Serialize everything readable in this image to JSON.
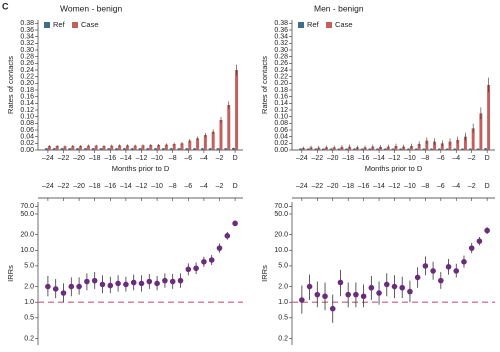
{
  "panel_label": "C",
  "chart_data": [
    {
      "type": "bar",
      "title": "Women - benign",
      "xlabel": "Months prior to D",
      "ylabel": "Rates of contacts",
      "legend": "upper left",
      "categories": [
        "–24",
        null,
        "–22",
        null,
        "–20",
        null,
        "–18",
        null,
        "–16",
        null,
        "–14",
        null,
        "–12",
        null,
        "–10",
        null,
        "–8",
        null,
        "–6",
        null,
        "–4",
        null,
        "–2",
        null,
        "D"
      ],
      "series": [
        {
          "name": "Ref",
          "color": "#3d6e8e",
          "values": [
            0.005,
            0.005,
            0.005,
            0.005,
            0.005,
            0.005,
            0.005,
            0.005,
            0.005,
            0.005,
            0.005,
            0.005,
            0.005,
            0.005,
            0.005,
            0.005,
            0.005,
            0.005,
            0.005,
            0.005,
            0.005,
            0.005,
            0.005,
            0.005,
            0.006
          ],
          "errors": [
            0.001,
            0.001,
            0.001,
            0.001,
            0.001,
            0.001,
            0.001,
            0.001,
            0.001,
            0.001,
            0.001,
            0.001,
            0.001,
            0.001,
            0.001,
            0.001,
            0.001,
            0.001,
            0.001,
            0.001,
            0.001,
            0.001,
            0.001,
            0.001,
            0.001
          ]
        },
        {
          "name": "Case",
          "color": "#c4605c",
          "values": [
            0.012,
            0.012,
            0.011,
            0.012,
            0.012,
            0.013,
            0.013,
            0.012,
            0.013,
            0.014,
            0.014,
            0.013,
            0.014,
            0.015,
            0.015,
            0.016,
            0.018,
            0.02,
            0.028,
            0.035,
            0.045,
            0.055,
            0.09,
            0.135,
            0.24
          ],
          "errors": [
            0.003,
            0.003,
            0.003,
            0.003,
            0.003,
            0.003,
            0.003,
            0.003,
            0.003,
            0.003,
            0.003,
            0.003,
            0.003,
            0.003,
            0.003,
            0.004,
            0.004,
            0.004,
            0.005,
            0.005,
            0.006,
            0.007,
            0.009,
            0.011,
            0.016
          ]
        }
      ],
      "ylim": [
        0,
        0.39
      ],
      "yticks": [
        {
          "value": 0,
          "label": "0.00"
        },
        {
          "value": 0.02,
          "label": "0.02"
        },
        {
          "value": 0.04,
          "label": "0.04"
        },
        {
          "value": 0.06,
          "label": "0.06"
        },
        {
          "value": 0.08,
          "label": "0.08"
        },
        {
          "value": 0.1,
          "label": "0.10"
        },
        {
          "value": 0.12,
          "label": "0.12"
        },
        {
          "value": 0.14,
          "label": "0.14"
        },
        {
          "value": 0.16,
          "label": "0.16"
        },
        {
          "value": 0.18,
          "label": "0.18"
        },
        {
          "value": 0.2,
          "label": "0.20"
        },
        {
          "value": 0.22,
          "label": "0.22"
        },
        {
          "value": 0.24,
          "label": "0.24"
        },
        {
          "value": 0.26,
          "label": "0.26"
        },
        {
          "value": 0.28,
          "label": "0.28"
        },
        {
          "value": 0.3,
          "label": "0.30"
        },
        {
          "value": 0.32,
          "label": "0.32"
        },
        {
          "value": 0.34,
          "label": "0.34"
        },
        {
          "value": 0.36,
          "label": "0.36"
        },
        {
          "value": 0.38,
          "label": "0.38"
        }
      ]
    },
    {
      "type": "bar",
      "title": "Men - benign",
      "xlabel": "Months prior to D",
      "ylabel": "Rates of contacts",
      "legend": "upper left",
      "categories": [
        "–24",
        null,
        "–22",
        null,
        "–20",
        null,
        "–18",
        null,
        "–16",
        null,
        "–14",
        null,
        "–12",
        null,
        "–10",
        null,
        "–8",
        null,
        "–6",
        null,
        "–4",
        null,
        "–2",
        null,
        "D"
      ],
      "series": [
        {
          "name": "Ref",
          "color": "#3d6e8e",
          "values": [
            0.004,
            0.004,
            0.004,
            0.004,
            0.004,
            0.004,
            0.004,
            0.004,
            0.004,
            0.004,
            0.004,
            0.004,
            0.004,
            0.004,
            0.004,
            0.004,
            0.004,
            0.004,
            0.004,
            0.004,
            0.004,
            0.004,
            0.004,
            0.004,
            0.005
          ],
          "errors": [
            0.001,
            0.001,
            0.001,
            0.001,
            0.001,
            0.001,
            0.001,
            0.001,
            0.001,
            0.001,
            0.001,
            0.001,
            0.001,
            0.001,
            0.001,
            0.001,
            0.001,
            0.001,
            0.001,
            0.001,
            0.001,
            0.001,
            0.001,
            0.001,
            0.001
          ]
        },
        {
          "name": "Case",
          "color": "#c4605c",
          "values": [
            0.006,
            0.008,
            0.007,
            0.008,
            0.008,
            0.009,
            0.01,
            0.008,
            0.008,
            0.01,
            0.009,
            0.01,
            0.012,
            0.01,
            0.012,
            0.018,
            0.028,
            0.025,
            0.02,
            0.025,
            0.03,
            0.04,
            0.065,
            0.11,
            0.195
          ],
          "errors": [
            0.004,
            0.005,
            0.005,
            0.005,
            0.005,
            0.006,
            0.006,
            0.005,
            0.005,
            0.006,
            0.006,
            0.006,
            0.007,
            0.006,
            0.007,
            0.008,
            0.01,
            0.01,
            0.009,
            0.01,
            0.01,
            0.012,
            0.014,
            0.018,
            0.022
          ]
        }
      ],
      "ylim": [
        0,
        0.39
      ],
      "yticks": [
        {
          "value": 0,
          "label": "0.00"
        },
        {
          "value": 0.02,
          "label": "0.02"
        },
        {
          "value": 0.04,
          "label": "0.04"
        },
        {
          "value": 0.06,
          "label": "0.06"
        },
        {
          "value": 0.08,
          "label": "0.08"
        },
        {
          "value": 0.1,
          "label": "0.10"
        },
        {
          "value": 0.12,
          "label": "0.12"
        },
        {
          "value": 0.14,
          "label": "0.14"
        },
        {
          "value": 0.16,
          "label": "0.16"
        },
        {
          "value": 0.18,
          "label": "0.18"
        },
        {
          "value": 0.2,
          "label": "0.20"
        },
        {
          "value": 0.22,
          "label": "0.22"
        },
        {
          "value": 0.24,
          "label": "0.24"
        },
        {
          "value": 0.26,
          "label": "0.26"
        },
        {
          "value": 0.28,
          "label": "0.28"
        },
        {
          "value": 0.3,
          "label": "0.30"
        },
        {
          "value": 0.32,
          "label": "0.32"
        },
        {
          "value": 0.34,
          "label": "0.34"
        },
        {
          "value": 0.36,
          "label": "0.36"
        },
        {
          "value": 0.38,
          "label": "0.38"
        }
      ]
    },
    {
      "type": "dotplot",
      "ylabel": "IRRs",
      "log_scale": true,
      "color": "#6b2d7b",
      "reference_line": 1,
      "reference_color": "#c9587a",
      "categories": [
        "–24",
        null,
        "–22",
        null,
        "–20",
        null,
        "–18",
        null,
        "–16",
        null,
        "–14",
        null,
        "–12",
        null,
        "–10",
        null,
        "–8",
        null,
        "–6",
        null,
        "–4",
        null,
        "–2",
        null,
        "D"
      ],
      "values": [
        2.0,
        1.8,
        1.5,
        2.0,
        2.0,
        2.5,
        2.6,
        2.2,
        2.1,
        2.3,
        2.2,
        2.4,
        2.3,
        2.5,
        2.3,
        2.6,
        2.5,
        2.6,
        4.3,
        4.5,
        6.0,
        6.5,
        11,
        19,
        33
      ],
      "lower": [
        1.3,
        1.2,
        1.0,
        1.3,
        1.4,
        1.7,
        1.8,
        1.5,
        1.5,
        1.6,
        1.6,
        1.7,
        1.6,
        1.8,
        1.7,
        1.9,
        1.8,
        1.9,
        3.3,
        3.5,
        4.8,
        5.2,
        9.0,
        16,
        29
      ],
      "upper": [
        3.2,
        2.8,
        2.3,
        3.0,
        3.0,
        3.6,
        3.8,
        3.3,
        3.1,
        3.3,
        3.1,
        3.4,
        3.3,
        3.5,
        3.2,
        3.6,
        3.5,
        3.6,
        5.6,
        5.8,
        7.5,
        8.1,
        13.5,
        22.5,
        37.5
      ],
      "ylim": [
        0.15,
        85
      ],
      "yticks": [
        0.2,
        0.5,
        {
          "value": 1,
          "label": "1.0"
        },
        {
          "value": 2,
          "label": "2.0"
        },
        {
          "value": 5,
          "label": "5.0"
        },
        {
          "value": 10,
          "label": "10.0"
        },
        {
          "value": 20,
          "label": "20.0"
        },
        {
          "value": 50,
          "label": "50.0"
        },
        {
          "value": 70,
          "label": "70.0"
        }
      ]
    },
    {
      "type": "dotplot",
      "ylabel": "IRRs",
      "log_scale": true,
      "color": "#6b2d7b",
      "reference_line": 1,
      "reference_color": "#c9587a",
      "categories": [
        "–24",
        null,
        "–22",
        null,
        "–20",
        null,
        "–18",
        null,
        "–16",
        null,
        "–14",
        null,
        "–12",
        null,
        "–10",
        null,
        "–8",
        null,
        "–6",
        null,
        "–4",
        null,
        "–2",
        null,
        "D"
      ],
      "values": [
        1.1,
        2.0,
        1.4,
        1.3,
        0.75,
        2.4,
        1.4,
        1.4,
        1.3,
        1.9,
        1.5,
        2.2,
        2.0,
        1.9,
        1.6,
        3.0,
        5.0,
        4.0,
        2.6,
        4.8,
        4.0,
        6.0,
        11,
        15,
        24
      ],
      "lower": [
        0.6,
        1.1,
        0.8,
        0.7,
        0.4,
        1.3,
        0.8,
        0.8,
        0.8,
        1.1,
        0.9,
        1.3,
        1.2,
        1.2,
        1.0,
        1.9,
        3.3,
        2.7,
        1.8,
        3.4,
        3.0,
        4.6,
        8.8,
        12.5,
        20.5
      ],
      "upper": [
        2.1,
        3.4,
        2.5,
        2.4,
        1.4,
        4.2,
        2.4,
        2.4,
        2.2,
        3.2,
        2.5,
        3.6,
        3.3,
        3.1,
        2.6,
        4.7,
        7.6,
        6.0,
        3.8,
        6.8,
        5.5,
        7.9,
        13.8,
        18,
        28
      ],
      "ylim": [
        0.15,
        85
      ],
      "yticks": [
        0.2,
        0.5,
        {
          "value": 1,
          "label": "1.0"
        },
        {
          "value": 2,
          "label": "2.0"
        },
        {
          "value": 5,
          "label": "5.0"
        },
        {
          "value": 10,
          "label": "10.0"
        },
        {
          "value": 20,
          "label": "20.0"
        },
        {
          "value": 50,
          "label": "50.0"
        },
        {
          "value": 70,
          "label": "70.0"
        }
      ]
    }
  ]
}
